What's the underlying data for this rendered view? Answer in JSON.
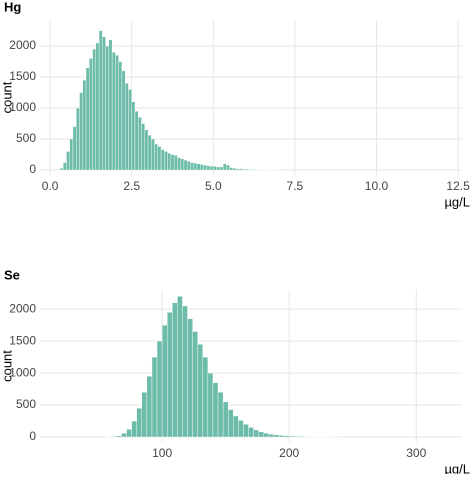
{
  "chart_data": [
    {
      "type": "histogram",
      "title": "Hg",
      "x_label": "µg/L",
      "y_label": "count",
      "color": "#6dbcaa",
      "grid": true,
      "bins": [
        0.2,
        0.3,
        0.4,
        0.5,
        0.6,
        0.7,
        0.8,
        0.9,
        1.0,
        1.1,
        1.2,
        1.3,
        1.4,
        1.5,
        1.6,
        1.7,
        1.8,
        1.9,
        2.0,
        2.1,
        2.2,
        2.3,
        2.4,
        2.5,
        2.6,
        2.7,
        2.8,
        2.9,
        3.0,
        3.1,
        3.2,
        3.3,
        3.4,
        3.5,
        3.6,
        3.7,
        3.8,
        3.9,
        4.0,
        4.1,
        4.2,
        4.3,
        4.4,
        4.5,
        4.6,
        4.7,
        4.8,
        4.9,
        5.0,
        5.1,
        5.2,
        5.3,
        5.4,
        5.5,
        5.6,
        5.7,
        5.8,
        5.9,
        6.0,
        6.1,
        6.2,
        6.3,
        6.4,
        6.5,
        6.6,
        6.7,
        6.8,
        6.9,
        7.0
      ],
      "values": [
        10,
        30,
        120,
        300,
        500,
        700,
        1000,
        1250,
        1450,
        1650,
        1800,
        1950,
        2050,
        2250,
        2150,
        2000,
        2100,
        1900,
        1850,
        1750,
        1600,
        1400,
        1300,
        1100,
        950,
        850,
        750,
        650,
        560,
        500,
        420,
        380,
        330,
        300,
        270,
        250,
        240,
        200,
        180,
        160,
        140,
        120,
        110,
        100,
        90,
        80,
        70,
        60,
        60,
        50,
        50,
        100,
        80,
        40,
        30,
        20,
        20,
        15,
        15,
        10,
        10,
        8,
        6,
        5,
        4,
        3,
        2,
        2
      ],
      "xlim": [
        -0.31,
        12.62
      ],
      "xticks": [
        {
          "value": 0,
          "label": "0.0"
        },
        2.5,
        {
          "value": 5,
          "label": "5.0"
        },
        7.5,
        {
          "value": 10,
          "label": "10.0"
        },
        12.5
      ],
      "ylim": [
        -80,
        2420
      ],
      "yticks": [
        0,
        500,
        1000,
        1500,
        2000
      ]
    },
    {
      "type": "histogram",
      "title": "Se",
      "x_label": "µg/L",
      "y_label": "count",
      "color": "#6dbcaa",
      "grid": true,
      "bins": [
        56,
        60,
        64,
        68,
        72,
        76,
        80,
        84,
        88,
        92,
        96,
        100,
        104,
        108,
        112,
        116,
        120,
        124,
        128,
        132,
        136,
        140,
        144,
        148,
        152,
        156,
        160,
        164,
        168,
        172,
        176,
        180,
        184,
        188,
        192,
        196,
        200,
        204,
        208,
        212,
        216,
        220,
        224,
        228,
        232,
        236,
        240
      ],
      "values": [
        5,
        10,
        20,
        60,
        120,
        250,
        450,
        700,
        950,
        1250,
        1500,
        1750,
        1950,
        2100,
        2200,
        2050,
        1850,
        1650,
        1450,
        1250,
        1000,
        850,
        700,
        550,
        430,
        330,
        260,
        200,
        150,
        110,
        80,
        60,
        45,
        35,
        25,
        20,
        15,
        12,
        10,
        8,
        6,
        5,
        4,
        3,
        2,
        2
      ],
      "xlim": [
        3.9,
        336
      ],
      "xticks": [
        100,
        200,
        300
      ],
      "ylim": [
        -78,
        2300
      ],
      "yticks": [
        0,
        500,
        1000,
        1500,
        2000
      ]
    }
  ]
}
